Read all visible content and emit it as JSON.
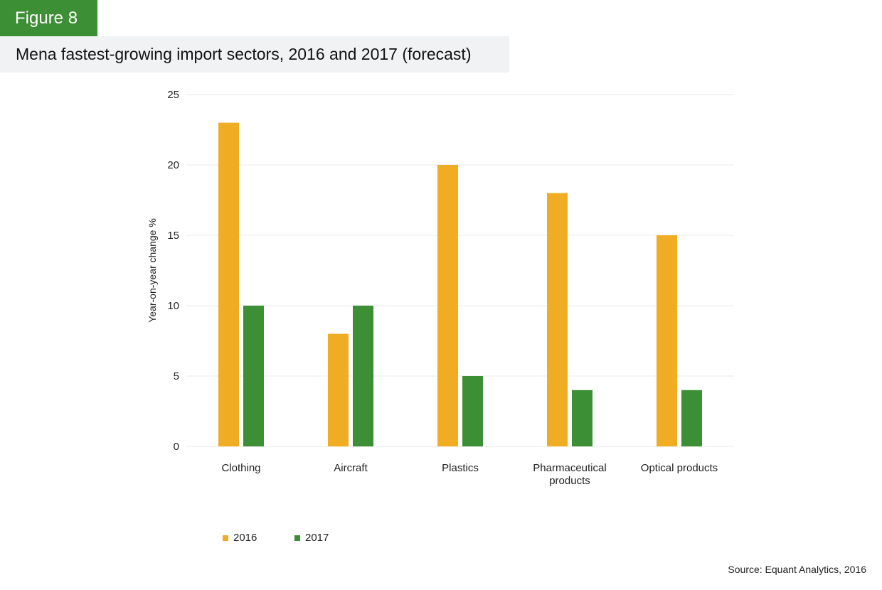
{
  "figure_label": "Figure 8",
  "title": "Mena fastest-growing import sectors, 2016 and 2017 (forecast)",
  "source": "Source: Equant Analytics, 2016",
  "colors": {
    "2016": "#f0ad24",
    "2017": "#3d8f35",
    "grid": "#e9e9e9"
  },
  "chart_data": {
    "type": "bar",
    "title": "Mena fastest-growing import sectors, 2016 and 2017 (forecast)",
    "xlabel": "",
    "ylabel": "Year-on-year change %",
    "ylim": [
      0,
      25
    ],
    "yticks": [
      "0",
      "5",
      "10",
      "15",
      "20",
      "25"
    ],
    "categories": [
      [
        "Clothing"
      ],
      [
        "Aircraft"
      ],
      [
        "Plastics"
      ],
      [
        "Pharmaceutical",
        "products"
      ],
      [
        "Optical products"
      ]
    ],
    "series": [
      {
        "name": "2016",
        "values": [
          23,
          8,
          20,
          18,
          15
        ]
      },
      {
        "name": "2017",
        "values": [
          10,
          10,
          5,
          4,
          4
        ]
      }
    ],
    "grid": true,
    "legend_position": "bottom-left"
  }
}
